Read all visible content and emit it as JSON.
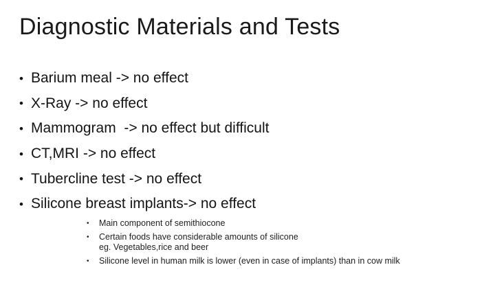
{
  "slide": {
    "title": "Diagnostic Materials and Tests",
    "bullets": [
      {
        "text": "Barium meal -> no effect"
      },
      {
        "text": "X-Ray -> no effect"
      },
      {
        "text": "Mammogram  -> no effect but difficult"
      },
      {
        "text": "CT,MRI -> no effect"
      },
      {
        "text": "Tubercline test -> no effect"
      },
      {
        "text": "Silicone breast implants-> no effect"
      }
    ],
    "sub_bullets": [
      {
        "line1": "Main component of semithiocone",
        "line2": ""
      },
      {
        "line1": "Certain foods have considerable amounts of silicone",
        "line2": "eg. Vegetables,rice and beer"
      },
      {
        "line1": "Silicone level in human milk is lower (even in case of implants) than in cow milk",
        "line2": ""
      }
    ],
    "bullet_glyph": "•",
    "colors": {
      "background": "#ffffff",
      "text": "#141414"
    }
  }
}
